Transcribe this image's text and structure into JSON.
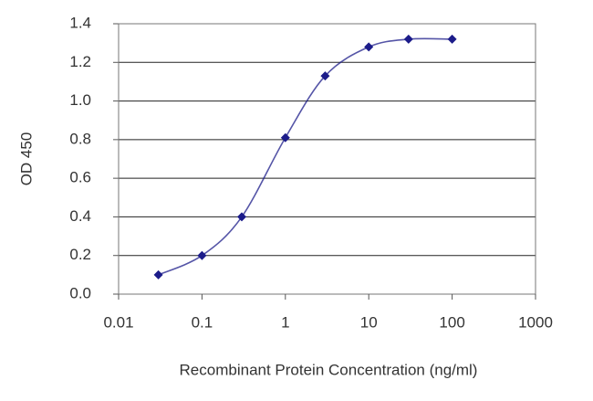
{
  "chart_data": {
    "type": "line",
    "xlabel": "Recombinant Protein Concentration (ng/ml)",
    "ylabel": "OD 450",
    "x": [
      0.03,
      0.1,
      0.3,
      1,
      3,
      10,
      30,
      100
    ],
    "series": [
      {
        "color": "#1c1c8a",
        "values": [
          0.1,
          0.2,
          0.4,
          0.81,
          1.13,
          1.28,
          1.32,
          1.32
        ]
      }
    ],
    "xscale": "log",
    "xlim": [
      0.01,
      1000
    ],
    "xticks": [
      0.01,
      0.1,
      1,
      10,
      100,
      1000
    ],
    "ylim": [
      0,
      1.4
    ],
    "yticks": [
      {
        "value": 0,
        "label": "0.0"
      },
      0.2,
      0.4,
      0.6,
      0.8,
      {
        "value": 1,
        "label": "1.0"
      },
      1.2,
      1.4
    ],
    "grid": true
  }
}
